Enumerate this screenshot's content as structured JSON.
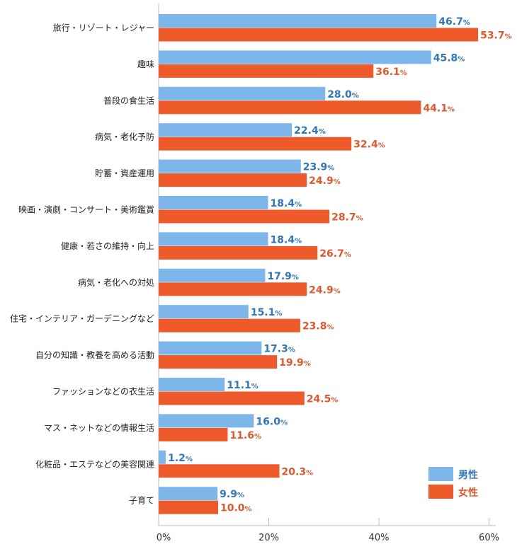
{
  "chart_data": {
    "type": "bar",
    "orientation": "horizontal",
    "categories": [
      "旅行・リゾート・レジャー",
      "趣味",
      "普段の食生活",
      "病気・老化予防",
      "貯蓄・資産運用",
      "映画・演劇・コンサート・美術鑑賞",
      "健康・若さの維持・向上",
      "病気・老化への対処",
      "住宅・インテリア・ガーデニングなど",
      "自分の知識・教養を高める活動",
      "ファッションなどの衣生活",
      "マス・ネットなどの情報生活",
      "化粧品・エステなどの美容関連",
      "子育て"
    ],
    "series": [
      {
        "name": "男性",
        "color": "#7cb6ea",
        "label_color": "#2f76bd",
        "values": [
          46.7,
          45.8,
          28.0,
          22.4,
          23.9,
          18.4,
          18.4,
          17.9,
          15.1,
          17.3,
          11.1,
          16.0,
          1.2,
          9.9
        ]
      },
      {
        "name": "女性",
        "color": "#ee5a2a",
        "label_color": "#e2582a",
        "values": [
          53.7,
          36.1,
          44.1,
          32.4,
          24.9,
          28.7,
          26.7,
          24.9,
          23.8,
          19.9,
          24.5,
          11.6,
          20.3,
          10.0
        ]
      }
    ],
    "xlim": [
      0,
      60
    ],
    "xticks": [
      "0%",
      "20%",
      "40%",
      "60%"
    ],
    "value_suffix": "%",
    "legend": "bottom-right",
    "grid": false
  }
}
